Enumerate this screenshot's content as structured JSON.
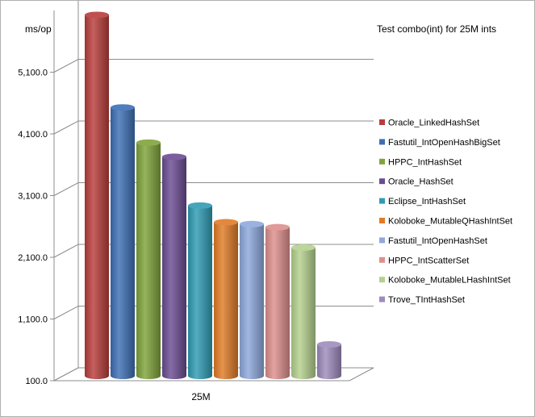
{
  "chart_data": {
    "type": "bar",
    "title": "Test combo(int) for 25M ints",
    "ylabel": "ms/op",
    "xlabel": "",
    "categories": [
      "25M"
    ],
    "ylim": [
      100,
      6100
    ],
    "yticks": [
      100,
      1100,
      2100,
      3100,
      4100,
      5100
    ],
    "ytick_labels": [
      "100.0",
      "1,100.0",
      "2,100.0",
      "3,100.0",
      "4,100.0",
      "5,100.0"
    ],
    "legend_position": "right",
    "grid": true,
    "series": [
      {
        "name": "Oracle_LinkedHashSet",
        "values": [
          5950
        ],
        "color": "#b83d3b"
      },
      {
        "name": "Fastutil_IntOpenHashBigSet",
        "values": [
          4450
        ],
        "color": "#3d6fb4"
      },
      {
        "name": "HPPC_IntHashSet",
        "values": [
          3880
        ],
        "color": "#7fa33a"
      },
      {
        "name": "Oracle_HashSet",
        "values": [
          3650
        ],
        "color": "#6b4c92"
      },
      {
        "name": "Eclipse_IntHashSet",
        "values": [
          2860
        ],
        "color": "#2f9bb3"
      },
      {
        "name": "Koloboke_MutableQHashIntSet",
        "values": [
          2590
        ],
        "color": "#e07b26"
      },
      {
        "name": "Fastutil_IntOpenHashSet",
        "values": [
          2560
        ],
        "color": "#8ea9dc"
      },
      {
        "name": "HPPC_IntScatterSet",
        "values": [
          2510
        ],
        "color": "#dd8f8c"
      },
      {
        "name": "Koloboke_MutableLHashIntSet",
        "values": [
          2180
        ],
        "color": "#b4d18e"
      },
      {
        "name": "Trove_TIntHashSet",
        "values": [
          610
        ],
        "color": "#9d8bbc"
      }
    ]
  }
}
